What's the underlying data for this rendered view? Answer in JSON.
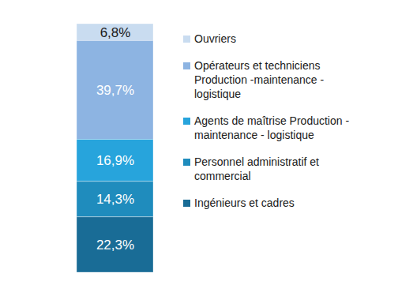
{
  "chart_data": {
    "type": "bar",
    "stacked": true,
    "data_labels": true,
    "tick_labels": false,
    "legend": "right",
    "categories": [
      null
    ],
    "ylim": [
      0,
      100
    ],
    "series": [
      {
        "name": "Ouvriers",
        "color": "#c9dcf0",
        "values": [
          6.8
        ],
        "value_labels": [
          "6,8%"
        ]
      },
      {
        "name": "Opérateurs et techniciens Production -maintenance - logistique",
        "color": "#8db4e2",
        "values": [
          39.7
        ],
        "value_labels": [
          "39,7%"
        ]
      },
      {
        "name": "Agents de maîtrise Production -maintenance - logistique",
        "color": "#27a4dc",
        "values": [
          16.9
        ],
        "value_labels": [
          "16,9%"
        ]
      },
      {
        "name": "Personnel administratif et commercial",
        "color": "#1f8cbd",
        "values": [
          14.3
        ],
        "value_labels": [
          "14,3%"
        ]
      },
      {
        "name": "Ingénieurs et cadres",
        "color": "#196c96",
        "values": [
          22.3
        ],
        "value_labels": [
          "22,3%"
        ]
      }
    ]
  }
}
